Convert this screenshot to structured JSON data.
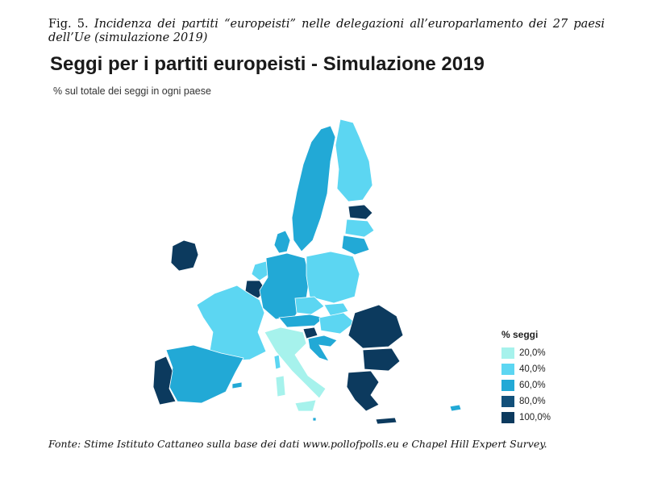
{
  "caption": {
    "lead": "Fig. 5.",
    "text": "Incidenza dei partiti “europeisti” nelle delegazioni all’europarlamento dei 27 paesi dell’Ue (simulazione 2019)"
  },
  "title": "Seggi per i partiti europeisti - Simulazione 2019",
  "subtitle": "% sul totale dei seggi in ogni paese",
  "legend": {
    "title": "% seggi",
    "items": [
      {
        "label": "20,0%",
        "color": "#a6f2ec"
      },
      {
        "label": "40,0%",
        "color": "#5cd6f2"
      },
      {
        "label": "60,0%",
        "color": "#22a9d6"
      },
      {
        "label": "80,0%",
        "color": "#12507a"
      },
      {
        "label": "100,0%",
        "color": "#0c3a5e"
      }
    ]
  },
  "map_colors": {
    "c20": "#a6f2ec",
    "c40": "#5cd6f2",
    "c60": "#22a9d6",
    "c80": "#12507a",
    "c100": "#0c3a5e"
  },
  "source": "Fonte: Stime Istituto Cattaneo sulla base dei dati www.pollofpolls.eu e Chapel Hill Expert Survey."
}
